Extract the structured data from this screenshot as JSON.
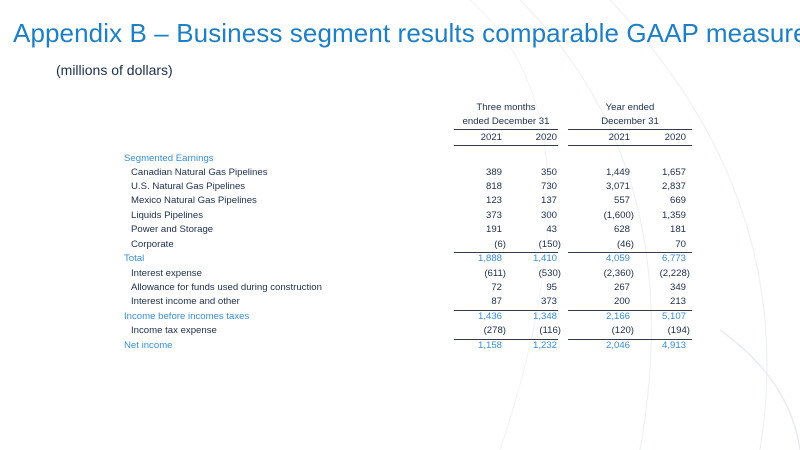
{
  "title": "Appendix B – Business segment results comparable GAAP measure",
  "subtitle": "(millions of dollars)",
  "headers": {
    "three_months": [
      "Three months",
      "ended December 31"
    ],
    "year_ended": [
      "Year ended",
      "December 31"
    ],
    "years": [
      "2021",
      "2020",
      "2021",
      "2020"
    ]
  },
  "rows": [
    {
      "label": "Segmented Earnings",
      "values": [
        "",
        "",
        "",
        ""
      ]
    },
    {
      "label": "Canadian Natural Gas Pipelines",
      "values": [
        "389",
        "350",
        "1,449",
        "1,657"
      ]
    },
    {
      "label": "U.S. Natural Gas Pipelines",
      "values": [
        "818",
        "730",
        "3,071",
        "2,837"
      ]
    },
    {
      "label": "Mexico Natural Gas Pipelines",
      "values": [
        "123",
        "137",
        "557",
        "669"
      ]
    },
    {
      "label": "Liquids Pipelines",
      "values": [
        "373",
        "300",
        "(1,600)",
        "1,359"
      ]
    },
    {
      "label": "Power and Storage",
      "values": [
        "191",
        "43",
        "628",
        "181"
      ]
    },
    {
      "label": "Corporate",
      "values": [
        "(6)",
        "(150)",
        "(46)",
        "70"
      ]
    },
    {
      "label": "Total",
      "values": [
        "1,888",
        "1,410",
        "4,059",
        "6,773"
      ]
    },
    {
      "label": "Interest expense",
      "values": [
        "(611)",
        "(530)",
        "(2,360)",
        "(2,228)"
      ]
    },
    {
      "label": "Allowance for funds used during construction",
      "values": [
        "72",
        "95",
        "267",
        "349"
      ]
    },
    {
      "label": "Interest income and other",
      "values": [
        "87",
        "373",
        "200",
        "213"
      ]
    },
    {
      "label": "Income before incomes taxes",
      "values": [
        "1,436",
        "1,348",
        "2,166",
        "5,107"
      ]
    },
    {
      "label": "Income tax expense",
      "values": [
        "(278)",
        "(116)",
        "(120)",
        "(194)"
      ]
    },
    {
      "label": "Net income",
      "values": [
        "1,158",
        "1,232",
        "2,046",
        "4,913"
      ]
    }
  ],
  "colors": {
    "title": "#1f7fc4",
    "section_label": "#3a8dd1",
    "text": "#1c2e4a"
  }
}
